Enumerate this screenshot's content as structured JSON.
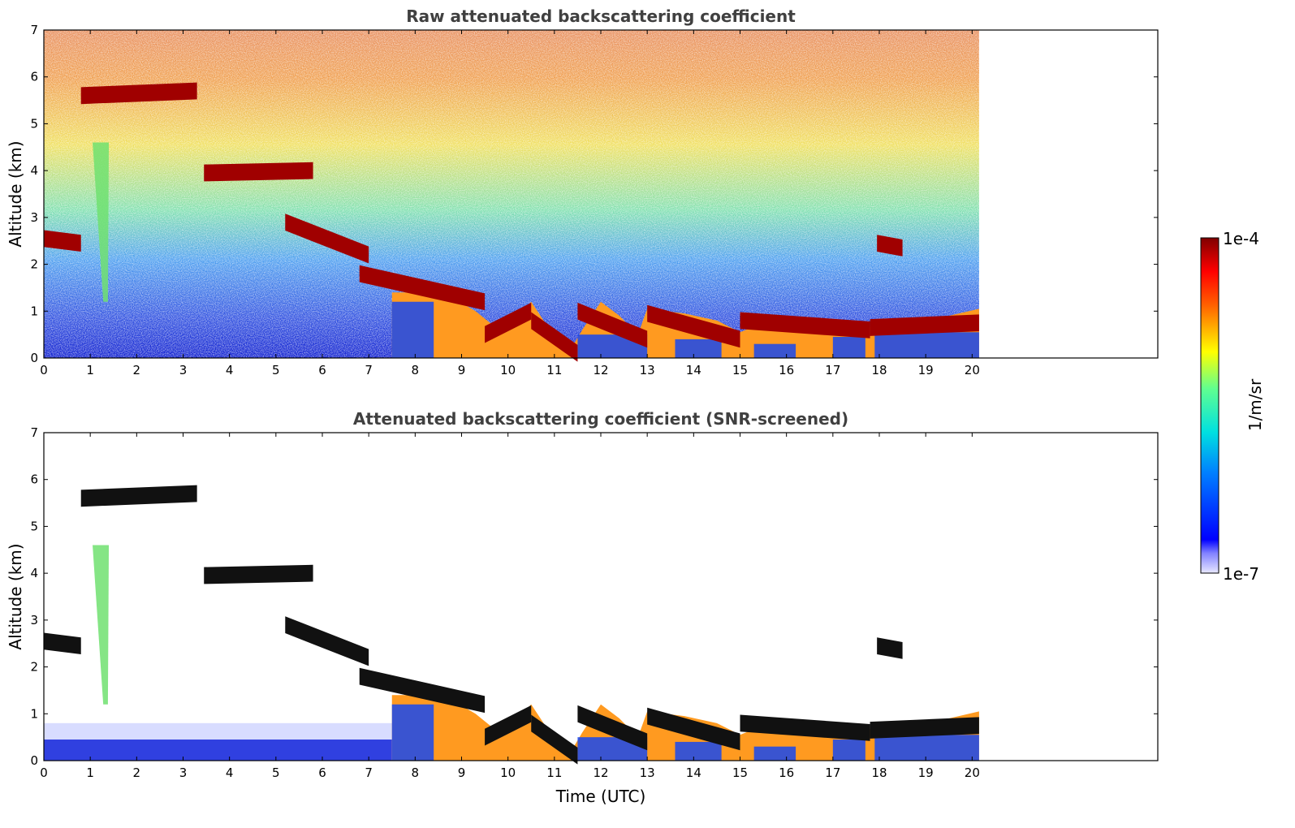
{
  "chart_data": [
    {
      "type": "heatmap",
      "title": "Raw attenuated backscattering coefficient",
      "ylabel": "Altitude (km)",
      "xlabel": "",
      "xlim": [
        0,
        24
      ],
      "ylim": [
        0,
        7
      ],
      "xticks": [
        "0",
        "1",
        "2",
        "3",
        "4",
        "5",
        "6",
        "7",
        "8",
        "9",
        "10",
        "11",
        "12",
        "13",
        "14",
        "15",
        "16",
        "17",
        "18",
        "19",
        "20"
      ],
      "yticks": [
        "0",
        "1",
        "2",
        "3",
        "4",
        "5",
        "6",
        "7"
      ],
      "data_end_time": 20.15,
      "background_noise": true,
      "cloud_layers": [
        {
          "t": [
            0.0,
            0.8,
            2.55,
            2.45
          ]
        },
        {
          "t": [
            0.8,
            3.3,
            5.6,
            5.7
          ]
        },
        {
          "t": [
            3.45,
            5.8,
            3.95,
            4.0
          ]
        },
        {
          "t": [
            5.2,
            7.0,
            2.9,
            2.2
          ]
        },
        {
          "t": [
            6.8,
            9.5,
            1.8,
            1.2
          ]
        },
        {
          "t": [
            9.5,
            10.5,
            0.5,
            1.0
          ]
        },
        {
          "t": [
            10.5,
            11.5,
            0.8,
            0.1
          ]
        },
        {
          "t": [
            11.5,
            13.0,
            1.0,
            0.4
          ]
        },
        {
          "t": [
            13.0,
            15.0,
            0.95,
            0.4
          ]
        },
        {
          "t": [
            15.0,
            17.8,
            0.8,
            0.6
          ]
        },
        {
          "t": [
            17.8,
            20.15,
            0.65,
            0.75
          ]
        },
        {
          "t": [
            17.95,
            18.5,
            2.45,
            2.35
          ]
        }
      ],
      "colors": {
        "low": "#0018e0",
        "high": "#8b0000"
      }
    },
    {
      "type": "heatmap",
      "title": "Attenuated backscattering coefficient (SNR-screened)",
      "ylabel": "Altitude (km)",
      "xlabel": "Time (UTC)",
      "xlim": [
        0,
        24
      ],
      "ylim": [
        0,
        7
      ],
      "xticks": [
        "0",
        "1",
        "2",
        "3",
        "4",
        "5",
        "6",
        "7",
        "8",
        "9",
        "10",
        "11",
        "12",
        "13",
        "14",
        "15",
        "16",
        "17",
        "18",
        "19",
        "20"
      ],
      "yticks": [
        "0",
        "1",
        "2",
        "3",
        "4",
        "5",
        "6",
        "7"
      ],
      "data_end_time": 20.15,
      "background_noise": false
    }
  ],
  "colorbar": {
    "max_label": "1e-4",
    "min_label": "1e-7",
    "unit_label": "1/m/sr"
  }
}
